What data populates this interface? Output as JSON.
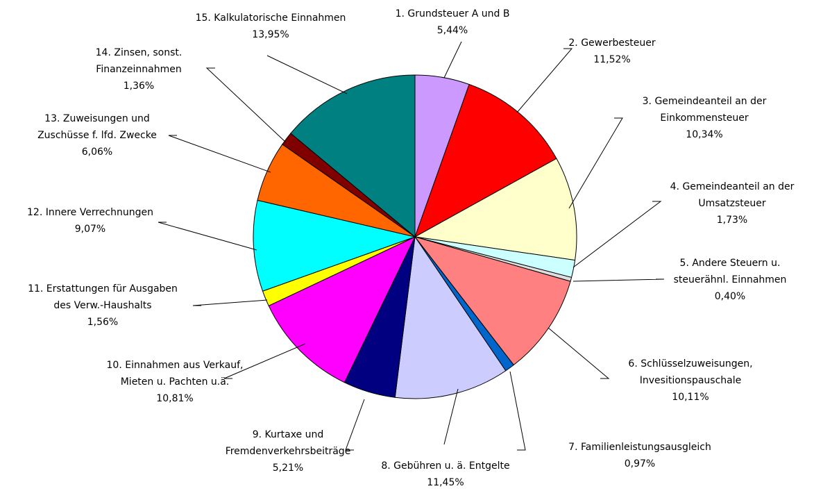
{
  "chart_data": {
    "type": "pie",
    "categories": [
      "1. Grundsteuer A und B",
      "2. Gewerbesteuer",
      "3. Gemeindeanteil an der\nEinkommensteuer",
      "4. Gemeindeanteil an der\nUmsatzsteuer",
      "5. Andere Steuern u.\nsteuerähnl. Einnahmen",
      "6. Schlüsselzuweisungen,\nInvesitionspauschale",
      "7. Familienleistungsausgleich",
      "8. Gebühren u. ä. Entgelte",
      "9. Kurtaxe und\nFremdenverkehrsbeiträge",
      "10. Einnahmen aus Verkauf,\nMieten u. Pachten u.ä.",
      "11. Erstattungen für Ausgaben\ndes Verw.-Haushalts",
      "12. Innere Verrechnungen",
      "13. Zuweisungen und\nZuschüsse f. lfd. Zwecke",
      "14. Zinsen, sonst.\nFinanzeinnahmen",
      "15. Kalkulatorische Einnahmen"
    ],
    "values": [
      5.44,
      11.52,
      10.34,
      1.73,
      0.4,
      10.11,
      0.97,
      11.45,
      5.21,
      10.81,
      1.56,
      9.07,
      6.06,
      1.36,
      13.95
    ],
    "value_labels": [
      "5,44%",
      "11,52%",
      "10,34%",
      "1,73%",
      "0,40%",
      "10,11%",
      "0,97%",
      "11,45%",
      "5,21%",
      "10,81%",
      "1,56%",
      "9,07%",
      "6,06%",
      "1,36%",
      "13,95%"
    ],
    "colors": [
      "#cc99ff",
      "#ff0000",
      "#ffffcc",
      "#ccffff",
      "#dddddd",
      "#ff8080",
      "#0066cc",
      "#ccccff",
      "#000080",
      "#ff00ff",
      "#ffff00",
      "#00ffff",
      "#ff6600",
      "#800000",
      "#008080"
    ]
  }
}
